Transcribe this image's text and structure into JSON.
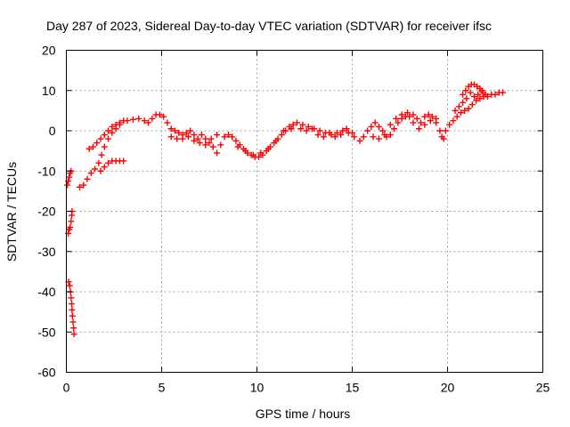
{
  "chart_data": {
    "type": "scatter",
    "title": "Day 287 of 2023, Sidereal Day-to-day VTEC variation (SDTVAR) for receiver ifsc",
    "xlabel": "GPS time / hours",
    "ylabel": "SDTVAR / TECUs",
    "xlim": [
      0,
      25
    ],
    "ylim": [
      -60,
      20
    ],
    "xticks": [
      0,
      5,
      10,
      15,
      20,
      25
    ],
    "yticks": [
      -60,
      -50,
      -40,
      -30,
      -20,
      -10,
      0,
      10,
      20
    ],
    "grid": true,
    "marker": "+",
    "color": "#ff0000",
    "series": [
      {
        "name": "SDTVAR",
        "points": [
          [
            0.05,
            -13.5
          ],
          [
            0.1,
            -12.5
          ],
          [
            0.15,
            -11.5
          ],
          [
            0.2,
            -10.5
          ],
          [
            0.25,
            -10.0
          ],
          [
            0.1,
            -25.5
          ],
          [
            0.15,
            -24.5
          ],
          [
            0.2,
            -24.0
          ],
          [
            0.25,
            -22.5
          ],
          [
            0.28,
            -21.0
          ],
          [
            0.3,
            -20.0
          ],
          [
            0.12,
            -37.5
          ],
          [
            0.18,
            -38.5
          ],
          [
            0.22,
            -40.0
          ],
          [
            0.25,
            -41.5
          ],
          [
            0.28,
            -43.0
          ],
          [
            0.3,
            -44.5
          ],
          [
            0.32,
            -46.0
          ],
          [
            0.35,
            -47.5
          ],
          [
            0.38,
            -49.0
          ],
          [
            0.4,
            -50.5
          ],
          [
            0.7,
            -14.0
          ],
          [
            0.9,
            -13.5
          ],
          [
            1.1,
            -12.0
          ],
          [
            1.3,
            -10.5
          ],
          [
            1.5,
            -9.5
          ],
          [
            1.7,
            -8.0
          ],
          [
            1.85,
            -6.0
          ],
          [
            2.0,
            -4.0
          ],
          [
            2.2,
            -2.0
          ],
          [
            2.4,
            -0.5
          ],
          [
            2.6,
            0.5
          ],
          [
            2.8,
            1.5
          ],
          [
            3.0,
            2.5
          ],
          [
            1.2,
            -4.5
          ],
          [
            1.4,
            -4.0
          ],
          [
            1.6,
            -3.0
          ],
          [
            1.8,
            -2.0
          ],
          [
            2.0,
            -1.0
          ],
          [
            2.2,
            0.0
          ],
          [
            2.4,
            1.0
          ],
          [
            2.6,
            1.5
          ],
          [
            2.8,
            2.0
          ],
          [
            1.8,
            -10.0
          ],
          [
            2.0,
            -9.0
          ],
          [
            2.2,
            -8.0
          ],
          [
            2.4,
            -7.5
          ],
          [
            2.6,
            -7.5
          ],
          [
            2.8,
            -7.5
          ],
          [
            3.0,
            -7.5
          ],
          [
            3.2,
            2.5
          ],
          [
            3.5,
            2.8
          ],
          [
            3.8,
            3.0
          ],
          [
            4.1,
            2.5
          ],
          [
            4.3,
            2.0
          ],
          [
            4.5,
            3.0
          ],
          [
            4.7,
            4.0
          ],
          [
            4.9,
            4.0
          ],
          [
            5.1,
            3.5
          ],
          [
            5.3,
            2.0
          ],
          [
            5.5,
            0.5
          ],
          [
            5.7,
            0.0
          ],
          [
            5.9,
            -0.5
          ],
          [
            6.1,
            -1.0
          ],
          [
            6.3,
            -0.5
          ],
          [
            6.5,
            0.0
          ],
          [
            6.7,
            -1.0
          ],
          [
            6.9,
            -2.0
          ],
          [
            7.1,
            -1.0
          ],
          [
            7.3,
            -2.0
          ],
          [
            7.5,
            -3.0
          ],
          [
            7.7,
            -4.0
          ],
          [
            7.9,
            -5.5
          ],
          [
            8.1,
            -3.5
          ],
          [
            8.3,
            -1.5
          ],
          [
            8.5,
            -1.0
          ],
          [
            5.5,
            -1.5
          ],
          [
            5.8,
            -2.0
          ],
          [
            6.1,
            -2.0
          ],
          [
            6.4,
            -1.5
          ],
          [
            6.7,
            -2.5
          ],
          [
            7.0,
            -3.0
          ],
          [
            7.3,
            -3.5
          ],
          [
            7.6,
            -2.0
          ],
          [
            7.9,
            -1.0
          ],
          [
            8.7,
            -1.5
          ],
          [
            8.9,
            -2.5
          ],
          [
            9.1,
            -3.5
          ],
          [
            9.3,
            -4.5
          ],
          [
            9.5,
            -5.5
          ],
          [
            9.7,
            -6.0
          ],
          [
            9.9,
            -6.5
          ],
          [
            10.1,
            -6.5
          ],
          [
            10.3,
            -6.0
          ],
          [
            10.5,
            -5.0
          ],
          [
            10.7,
            -4.0
          ],
          [
            10.9,
            -3.0
          ],
          [
            11.1,
            -2.0
          ],
          [
            11.3,
            -1.0
          ],
          [
            11.5,
            0.0
          ],
          [
            11.7,
            1.0
          ],
          [
            11.9,
            1.5
          ],
          [
            9.0,
            -4.0
          ],
          [
            9.4,
            -5.0
          ],
          [
            9.8,
            -6.0
          ],
          [
            10.2,
            -5.5
          ],
          [
            10.6,
            -4.5
          ],
          [
            11.0,
            -2.5
          ],
          [
            11.4,
            0.0
          ],
          [
            11.8,
            0.5
          ],
          [
            12.1,
            2.0
          ],
          [
            12.4,
            1.5
          ],
          [
            12.7,
            1.0
          ],
          [
            13.0,
            0.5
          ],
          [
            13.3,
            0.0
          ],
          [
            13.6,
            -0.5
          ],
          [
            13.9,
            -1.0
          ],
          [
            14.2,
            -0.5
          ],
          [
            14.5,
            0.0
          ],
          [
            14.8,
            -0.5
          ],
          [
            15.1,
            -1.5
          ],
          [
            15.4,
            -2.5
          ],
          [
            15.6,
            -1.5
          ],
          [
            15.8,
            0.0
          ],
          [
            12.3,
            0.5
          ],
          [
            12.6,
            0.0
          ],
          [
            12.9,
            0.5
          ],
          [
            13.2,
            -1.0
          ],
          [
            13.5,
            -1.5
          ],
          [
            13.8,
            -0.5
          ],
          [
            14.1,
            -1.5
          ],
          [
            14.4,
            -1.0
          ],
          [
            14.7,
            0.5
          ],
          [
            15.0,
            -0.5
          ],
          [
            16.0,
            1.0
          ],
          [
            16.2,
            2.0
          ],
          [
            16.4,
            1.0
          ],
          [
            16.6,
            0.0
          ],
          [
            16.8,
            -1.5
          ],
          [
            17.0,
            -1.0
          ],
          [
            17.2,
            0.5
          ],
          [
            17.4,
            2.0
          ],
          [
            17.6,
            3.0
          ],
          [
            17.8,
            3.5
          ],
          [
            18.0,
            3.5
          ],
          [
            18.2,
            4.0
          ],
          [
            18.4,
            3.0
          ],
          [
            18.6,
            2.0
          ],
          [
            18.8,
            3.5
          ],
          [
            19.0,
            4.0
          ],
          [
            19.2,
            3.5
          ],
          [
            19.4,
            2.0
          ],
          [
            19.6,
            0.0
          ],
          [
            19.8,
            -2.0
          ],
          [
            16.1,
            -1.5
          ],
          [
            16.4,
            -2.0
          ],
          [
            16.7,
            -1.0
          ],
          [
            17.0,
            1.5
          ],
          [
            17.3,
            3.0
          ],
          [
            17.6,
            4.0
          ],
          [
            17.9,
            4.5
          ],
          [
            18.2,
            2.0
          ],
          [
            18.5,
            0.5
          ],
          [
            18.8,
            1.5
          ],
          [
            19.1,
            2.5
          ],
          [
            19.4,
            3.0
          ],
          [
            19.7,
            -1.5
          ],
          [
            19.9,
            0.0
          ],
          [
            20.1,
            1.5
          ],
          [
            20.3,
            2.5
          ],
          [
            20.5,
            3.5
          ],
          [
            20.7,
            4.5
          ],
          [
            20.9,
            5.0
          ],
          [
            21.1,
            5.5
          ],
          [
            21.3,
            6.5
          ],
          [
            21.5,
            7.5
          ],
          [
            21.7,
            8.0
          ],
          [
            21.9,
            8.5
          ],
          [
            22.1,
            8.5
          ],
          [
            22.3,
            9.0
          ],
          [
            22.5,
            9.0
          ],
          [
            22.7,
            9.5
          ],
          [
            22.9,
            9.5
          ],
          [
            20.8,
            9.0
          ],
          [
            20.95,
            10.0
          ],
          [
            21.1,
            11.0
          ],
          [
            21.25,
            11.5
          ],
          [
            21.4,
            11.5
          ],
          [
            21.55,
            11.0
          ],
          [
            21.7,
            10.5
          ],
          [
            21.85,
            9.5
          ],
          [
            22.0,
            9.0
          ],
          [
            21.8,
            10.0
          ],
          [
            21.6,
            9.0
          ],
          [
            21.4,
            8.5
          ],
          [
            21.2,
            9.5
          ],
          [
            21.0,
            8.0
          ],
          [
            20.8,
            7.0
          ],
          [
            20.6,
            6.0
          ],
          [
            20.4,
            5.0
          ]
        ]
      }
    ]
  }
}
